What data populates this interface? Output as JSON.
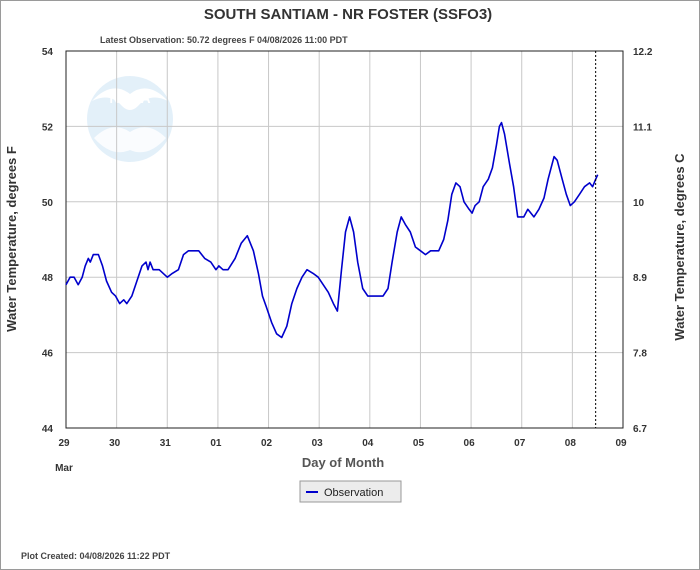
{
  "chart_data": {
    "type": "line",
    "title": "SOUTH SANTIAM - NR FOSTER  (SSFO3)",
    "subtitle": "Latest Observation: 50.72 degrees F 04/08/2026 11:00 PDT",
    "xlabel": "Day of Month",
    "ylabel": "Water Temperature, degrees F",
    "ylabel_right": "Water Temperature, degrees C",
    "month_label": "Mar",
    "footer": "Plot Created: 04/08/2026 11:22 PDT",
    "xlim": [
      0,
      11
    ],
    "ylim": [
      44,
      54
    ],
    "x_ticks": [
      {
        "x": 0,
        "label": "29"
      },
      {
        "x": 1,
        "label": "30"
      },
      {
        "x": 2,
        "label": "31"
      },
      {
        "x": 3,
        "label": "01"
      },
      {
        "x": 4,
        "label": "02"
      },
      {
        "x": 5,
        "label": "03"
      },
      {
        "x": 6,
        "label": "04"
      },
      {
        "x": 7,
        "label": "05"
      },
      {
        "x": 8,
        "label": "06"
      },
      {
        "x": 9,
        "label": "07"
      },
      {
        "x": 10,
        "label": "08"
      },
      {
        "x": 11,
        "label": "09"
      }
    ],
    "y_ticks_left": [
      {
        "v": 44,
        "label": "44"
      },
      {
        "v": 46,
        "label": "46"
      },
      {
        "v": 48,
        "label": "48"
      },
      {
        "v": 50,
        "label": "50"
      },
      {
        "v": 52,
        "label": "52"
      },
      {
        "v": 54,
        "label": "54"
      }
    ],
    "y_ticks_right": [
      {
        "v": 44,
        "label": "6.7"
      },
      {
        "v": 46,
        "label": "7.8"
      },
      {
        "v": 48,
        "label": "8.9"
      },
      {
        "v": 50,
        "label": "10"
      },
      {
        "v": 52,
        "label": "11.1"
      },
      {
        "v": 54,
        "label": "12.2"
      }
    ],
    "grid": true,
    "current_time_x": 10.46,
    "legend_position": "bottom-center",
    "colors": {
      "series": "#0000cc",
      "grid": "#c8c8c8",
      "marker_line": "#000000"
    },
    "series": [
      {
        "name": "Observation",
        "points": [
          [
            0.0,
            47.8
          ],
          [
            0.08,
            48.0
          ],
          [
            0.16,
            48.0
          ],
          [
            0.24,
            47.8
          ],
          [
            0.32,
            48.0
          ],
          [
            0.38,
            48.3
          ],
          [
            0.44,
            48.5
          ],
          [
            0.48,
            48.4
          ],
          [
            0.54,
            48.6
          ],
          [
            0.64,
            48.6
          ],
          [
            0.72,
            48.3
          ],
          [
            0.8,
            47.9
          ],
          [
            0.9,
            47.6
          ],
          [
            0.98,
            47.5
          ],
          [
            1.06,
            47.3
          ],
          [
            1.14,
            47.4
          ],
          [
            1.2,
            47.3
          ],
          [
            1.3,
            47.5
          ],
          [
            1.4,
            47.9
          ],
          [
            1.5,
            48.3
          ],
          [
            1.58,
            48.4
          ],
          [
            1.62,
            48.2
          ],
          [
            1.66,
            48.4
          ],
          [
            1.72,
            48.2
          ],
          [
            1.84,
            48.2
          ],
          [
            2.0,
            48.0
          ],
          [
            2.1,
            48.1
          ],
          [
            2.22,
            48.2
          ],
          [
            2.32,
            48.6
          ],
          [
            2.42,
            48.7
          ],
          [
            2.62,
            48.7
          ],
          [
            2.74,
            48.5
          ],
          [
            2.86,
            48.4
          ],
          [
            2.96,
            48.2
          ],
          [
            3.02,
            48.3
          ],
          [
            3.1,
            48.2
          ],
          [
            3.2,
            48.2
          ],
          [
            3.34,
            48.5
          ],
          [
            3.46,
            48.9
          ],
          [
            3.58,
            49.1
          ],
          [
            3.7,
            48.7
          ],
          [
            3.8,
            48.1
          ],
          [
            3.88,
            47.5
          ],
          [
            3.96,
            47.2
          ],
          [
            4.06,
            46.8
          ],
          [
            4.16,
            46.5
          ],
          [
            4.26,
            46.4
          ],
          [
            4.36,
            46.7
          ],
          [
            4.46,
            47.3
          ],
          [
            4.56,
            47.7
          ],
          [
            4.66,
            48.0
          ],
          [
            4.76,
            48.2
          ],
          [
            4.88,
            48.1
          ],
          [
            4.98,
            48.0
          ],
          [
            5.08,
            47.8
          ],
          [
            5.18,
            47.6
          ],
          [
            5.28,
            47.3
          ],
          [
            5.36,
            47.1
          ],
          [
            5.44,
            48.2
          ],
          [
            5.52,
            49.2
          ],
          [
            5.6,
            49.6
          ],
          [
            5.68,
            49.2
          ],
          [
            5.76,
            48.4
          ],
          [
            5.86,
            47.7
          ],
          [
            5.96,
            47.5
          ],
          [
            6.1,
            47.5
          ],
          [
            6.26,
            47.5
          ],
          [
            6.36,
            47.7
          ],
          [
            6.44,
            48.4
          ],
          [
            6.54,
            49.2
          ],
          [
            6.62,
            49.6
          ],
          [
            6.7,
            49.4
          ],
          [
            6.8,
            49.2
          ],
          [
            6.9,
            48.8
          ],
          [
            7.0,
            48.7
          ],
          [
            7.1,
            48.6
          ],
          [
            7.2,
            48.7
          ],
          [
            7.36,
            48.7
          ],
          [
            7.46,
            49.0
          ],
          [
            7.54,
            49.5
          ],
          [
            7.62,
            50.2
          ],
          [
            7.7,
            50.5
          ],
          [
            7.78,
            50.4
          ],
          [
            7.86,
            50.0
          ],
          [
            7.96,
            49.8
          ],
          [
            8.02,
            49.7
          ],
          [
            8.08,
            49.9
          ],
          [
            8.16,
            50.0
          ],
          [
            8.24,
            50.4
          ],
          [
            8.34,
            50.6
          ],
          [
            8.42,
            50.9
          ],
          [
            8.5,
            51.5
          ],
          [
            8.56,
            52.0
          ],
          [
            8.6,
            52.1
          ],
          [
            8.66,
            51.8
          ],
          [
            8.76,
            51.0
          ],
          [
            8.84,
            50.4
          ],
          [
            8.92,
            49.6
          ],
          [
            9.04,
            49.6
          ],
          [
            9.12,
            49.8
          ],
          [
            9.24,
            49.6
          ],
          [
            9.34,
            49.8
          ],
          [
            9.44,
            50.1
          ],
          [
            9.52,
            50.6
          ],
          [
            9.6,
            51.0
          ],
          [
            9.64,
            51.2
          ],
          [
            9.7,
            51.1
          ],
          [
            9.8,
            50.6
          ],
          [
            9.88,
            50.2
          ],
          [
            9.96,
            49.9
          ],
          [
            10.04,
            50.0
          ],
          [
            10.14,
            50.2
          ],
          [
            10.24,
            50.4
          ],
          [
            10.34,
            50.5
          ],
          [
            10.4,
            50.4
          ],
          [
            10.46,
            50.6
          ],
          [
            10.5,
            50.72
          ]
        ]
      }
    ]
  }
}
